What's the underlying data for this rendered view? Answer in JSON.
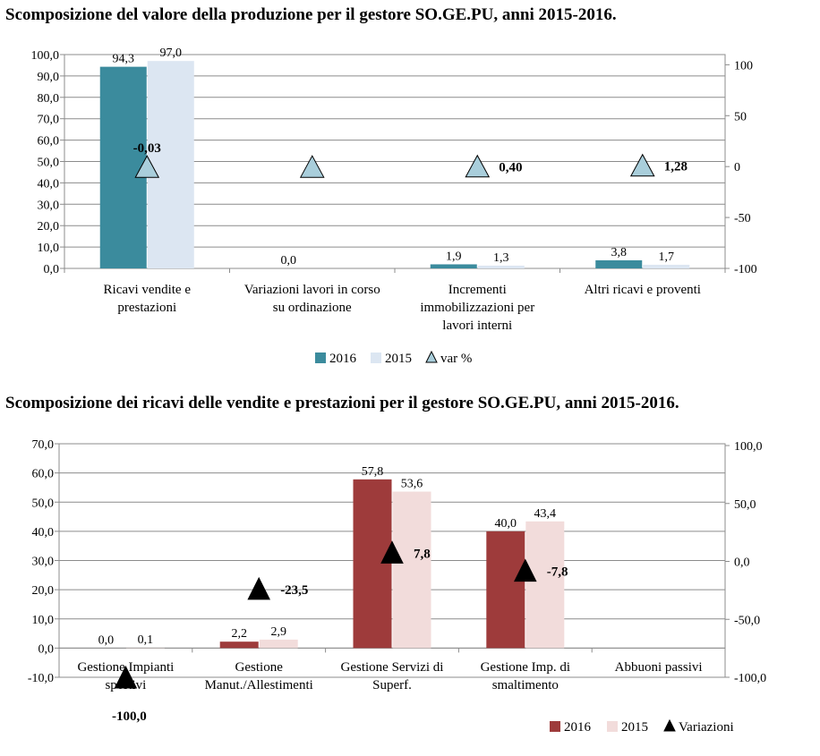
{
  "charts": [
    {
      "type": "bar",
      "title": "Scomposizione del valore della produzione per il gestore SO.GE.PU, anni 2015-2016.",
      "categories": [
        "Ricavi vendite e prestazioni",
        "Variazioni lavori in corso su ordinazione",
        "Incrementi immobilizzazioni per lavori interni",
        "Altri ricavi e proventi"
      ],
      "series": [
        {
          "name": "2016",
          "values": [
            94.3,
            0.0,
            1.9,
            3.8
          ],
          "labels": [
            "94,3",
            "0,0",
            "1,9",
            "3,8"
          ],
          "color": "#3B8B9D"
        },
        {
          "name": "2015",
          "values": [
            97.0,
            0.0,
            1.3,
            1.7
          ],
          "labels": [
            "97,0",
            "",
            "1,3",
            "1,7"
          ],
          "color": "#DCE6F2"
        }
      ],
      "markers": {
        "name": "var %",
        "values": [
          -0.03,
          0,
          0.4,
          1.28
        ],
        "labels": [
          "-0,03",
          "",
          "0,40",
          "1,28"
        ],
        "color": "#A9CEDB"
      },
      "ylim": [
        0,
        100
      ],
      "yticks": [
        "0,0",
        "10,0",
        "20,0",
        "30,0",
        "40,0",
        "50,0",
        "60,0",
        "70,0",
        "80,0",
        "90,0",
        "100,0"
      ],
      "y2lim": [
        -100,
        110
      ],
      "y2ticks": [
        "-100",
        "-50",
        "0",
        "50",
        "100"
      ],
      "legend_position": "bottom"
    },
    {
      "type": "bar",
      "title": "Scomposizione dei ricavi delle vendite e prestazioni per il gestore SO.GE.PU, anni 2015-2016.",
      "categories": [
        "Gestione Impianti sportivi",
        "Gestione Manut./Allestimenti",
        "Gestione Servizi di Superf.",
        "Gestione Imp. di smaltimento",
        "Abbuoni passivi"
      ],
      "series": [
        {
          "name": "2016",
          "values": [
            0.0,
            2.2,
            57.8,
            40.0,
            0.0
          ],
          "labels": [
            "0,0",
            "2,2",
            "57,8",
            "40,0",
            ""
          ],
          "color": "#9E3B3B"
        },
        {
          "name": "2015",
          "values": [
            0.1,
            2.9,
            53.6,
            43.4,
            0.0
          ],
          "labels": [
            "0,1",
            "2,9",
            "53,6",
            "43,4",
            ""
          ],
          "color": "#F2DCDB"
        }
      ],
      "markers": {
        "name": "Variazioni",
        "values": [
          -100.0,
          -23.5,
          7.8,
          -7.8
        ],
        "labels": [
          "-100,0",
          "-23,5",
          "7,8",
          "-7,8"
        ],
        "color": "#000000"
      },
      "ylim": [
        -10,
        70
      ],
      "yticks": [
        "-10,0",
        "0,0",
        "10,0",
        "20,0",
        "30,0",
        "40,0",
        "50,0",
        "60,0",
        "70,0"
      ],
      "y2lim": [
        -100,
        100
      ],
      "y2ticks": [
        "-100,0",
        "-50,0",
        "0,0",
        "50,0",
        "100,0"
      ],
      "legend_position": "bottom-right"
    }
  ]
}
